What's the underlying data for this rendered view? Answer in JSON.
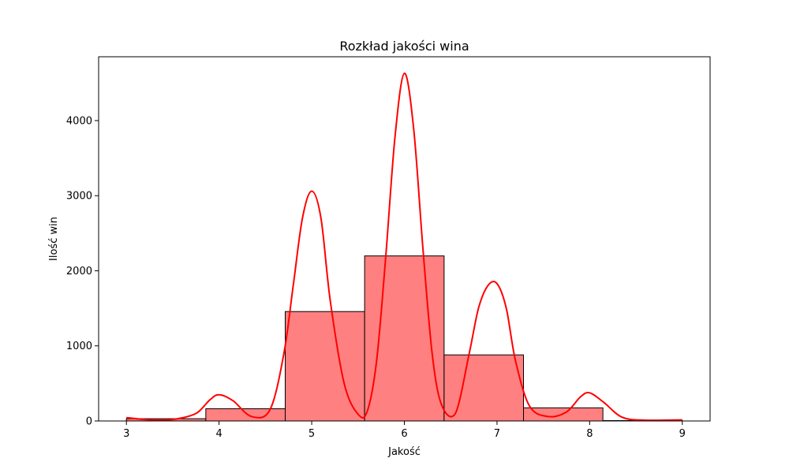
{
  "chart_data": {
    "type": "bar",
    "title": "Rozkład jakości wina",
    "xlabel": "Jakość",
    "ylabel": "Ilość win",
    "xlim": [
      2.7,
      9.3
    ],
    "ylim": [
      0,
      4850
    ],
    "x_ticks": [
      3,
      4,
      5,
      6,
      7,
      8,
      9
    ],
    "y_ticks": [
      0,
      1000,
      2000,
      3000,
      4000
    ],
    "bins": [
      {
        "x0": 3.0,
        "x1": 3.857,
        "value": 30
      },
      {
        "x0": 3.857,
        "x1": 4.714,
        "value": 163
      },
      {
        "x0": 4.714,
        "x1": 5.571,
        "value": 1457
      },
      {
        "x0": 5.571,
        "x1": 6.429,
        "value": 2198
      },
      {
        "x0": 6.429,
        "x1": 7.286,
        "value": 880
      },
      {
        "x0": 7.286,
        "x1": 8.143,
        "value": 175
      },
      {
        "x0": 8.143,
        "x1": 9.0,
        "value": 5
      }
    ],
    "kde": {
      "x": [
        3.0,
        3.25,
        3.5,
        3.75,
        3.9,
        4.0,
        4.15,
        4.35,
        4.55,
        4.7,
        4.8,
        4.9,
        5.0,
        5.1,
        5.2,
        5.35,
        5.5,
        5.6,
        5.7,
        5.8,
        5.9,
        6.0,
        6.1,
        6.2,
        6.3,
        6.4,
        6.55,
        6.7,
        6.8,
        6.9,
        7.0,
        7.1,
        7.2,
        7.35,
        7.55,
        7.75,
        7.9,
        8.0,
        8.15,
        8.35,
        8.6,
        9.0
      ],
      "y": [
        45,
        15,
        20,
        100,
        280,
        350,
        270,
        60,
        150,
        900,
        1800,
        2700,
        3060,
        2700,
        1600,
        500,
        90,
        130,
        800,
        2200,
        3800,
        4630,
        3900,
        2300,
        900,
        220,
        100,
        900,
        1500,
        1800,
        1830,
        1500,
        800,
        200,
        60,
        120,
        320,
        375,
        250,
        50,
        10,
        15
      ]
    },
    "bar_color": "#ff8080",
    "bar_edge": "#000000",
    "line_color": "#ff0000",
    "grid": false,
    "legend": "none"
  }
}
